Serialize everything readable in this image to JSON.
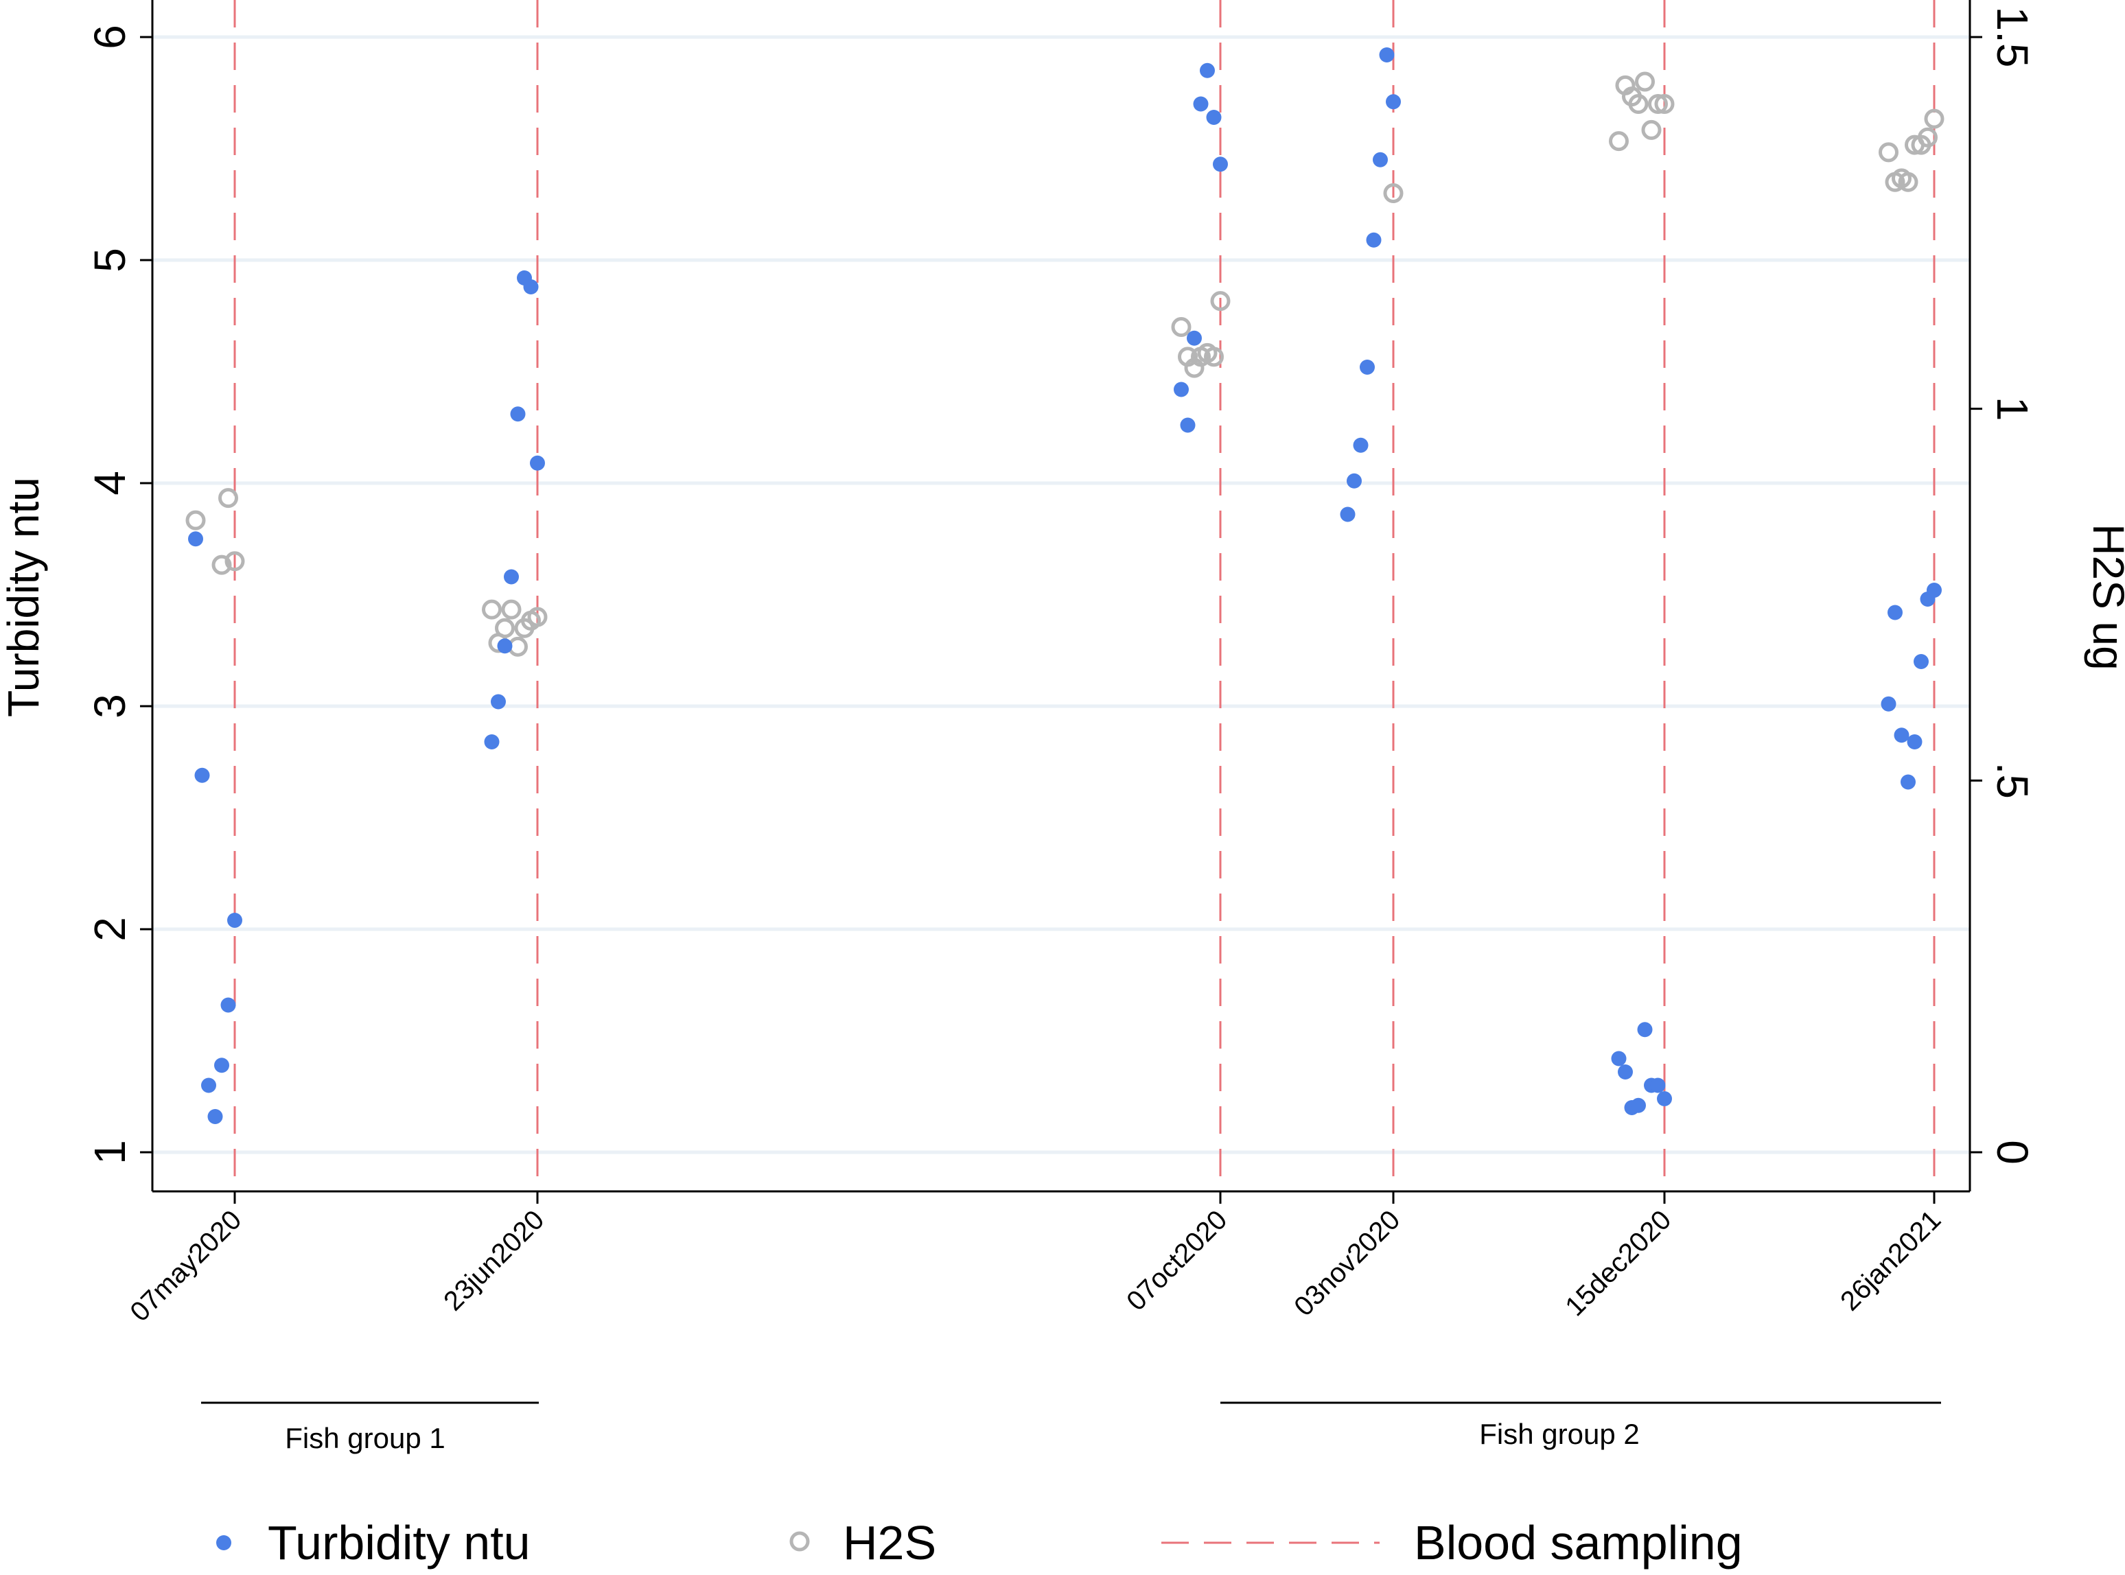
{
  "chart_data": {
    "type": "scatter",
    "title": "",
    "ylabel_left": "Turbidity ntu",
    "ylabel_right": "H2S ug",
    "ylim_left": [
      1,
      6
    ],
    "ylim_right": [
      0,
      1.5
    ],
    "yticks_left": [
      "1",
      "2",
      "3",
      "4",
      "5",
      "6"
    ],
    "yticks_right": [
      "0",
      ".5",
      "1",
      "1.5"
    ],
    "x_dates": [
      "07may2020",
      "23jun2020",
      "07oct2020",
      "03nov2020",
      "15dec2020",
      "26jan2021"
    ],
    "groups": [
      {
        "label": "Fish group 1",
        "from": "07may2020",
        "to": "23jun2020"
      },
      {
        "label": "Fish group 2",
        "from": "07oct2020",
        "to": "26jan2021"
      }
    ],
    "series": [
      {
        "name": "Turbidity ntu",
        "axis": "left",
        "marker": "filled-circle",
        "color": "#4a7fe6",
        "points": [
          {
            "date": "07may2020",
            "offset": -6,
            "value": 3.75
          },
          {
            "date": "07may2020",
            "offset": -5,
            "value": 2.69
          },
          {
            "date": "07may2020",
            "offset": -4,
            "value": 1.3
          },
          {
            "date": "07may2020",
            "offset": -3,
            "value": 1.16
          },
          {
            "date": "07may2020",
            "offset": -2,
            "value": 1.39
          },
          {
            "date": "07may2020",
            "offset": -1,
            "value": 1.66
          },
          {
            "date": "07may2020",
            "offset": 0,
            "value": 2.04
          },
          {
            "date": "23jun2020",
            "offset": -7,
            "value": 2.84
          },
          {
            "date": "23jun2020",
            "offset": -6,
            "value": 3.02
          },
          {
            "date": "23jun2020",
            "offset": -5,
            "value": 3.27
          },
          {
            "date": "23jun2020",
            "offset": -4,
            "value": 3.58
          },
          {
            "date": "23jun2020",
            "offset": -3,
            "value": 4.31
          },
          {
            "date": "23jun2020",
            "offset": -2,
            "value": 4.92
          },
          {
            "date": "23jun2020",
            "offset": -1,
            "value": 4.88
          },
          {
            "date": "23jun2020",
            "offset": 0,
            "value": 4.09
          },
          {
            "date": "07oct2020",
            "offset": -6,
            "value": 4.42
          },
          {
            "date": "07oct2020",
            "offset": -5,
            "value": 4.26
          },
          {
            "date": "07oct2020",
            "offset": -4,
            "value": 4.65
          },
          {
            "date": "07oct2020",
            "offset": -3,
            "value": 5.7
          },
          {
            "date": "07oct2020",
            "offset": -2,
            "value": 5.85
          },
          {
            "date": "07oct2020",
            "offset": -1,
            "value": 5.64
          },
          {
            "date": "07oct2020",
            "offset": 0,
            "value": 5.43
          },
          {
            "date": "03nov2020",
            "offset": -7,
            "value": 3.86
          },
          {
            "date": "03nov2020",
            "offset": -6,
            "value": 4.01
          },
          {
            "date": "03nov2020",
            "offset": -5,
            "value": 4.17
          },
          {
            "date": "03nov2020",
            "offset": -4,
            "value": 4.52
          },
          {
            "date": "03nov2020",
            "offset": -3,
            "value": 5.09
          },
          {
            "date": "03nov2020",
            "offset": -2,
            "value": 5.45
          },
          {
            "date": "03nov2020",
            "offset": -1,
            "value": 5.92
          },
          {
            "date": "03nov2020",
            "offset": 0,
            "value": 5.71
          },
          {
            "date": "15dec2020",
            "offset": -7,
            "value": 1.42
          },
          {
            "date": "15dec2020",
            "offset": -6,
            "value": 1.36
          },
          {
            "date": "15dec2020",
            "offset": -5,
            "value": 1.2
          },
          {
            "date": "15dec2020",
            "offset": -4,
            "value": 1.21
          },
          {
            "date": "15dec2020",
            "offset": -3,
            "value": 1.55
          },
          {
            "date": "15dec2020",
            "offset": -2,
            "value": 1.3
          },
          {
            "date": "15dec2020",
            "offset": -1,
            "value": 1.3
          },
          {
            "date": "15dec2020",
            "offset": 0,
            "value": 1.24
          },
          {
            "date": "26jan2021",
            "offset": -7,
            "value": 3.01
          },
          {
            "date": "26jan2021",
            "offset": -6,
            "value": 3.42
          },
          {
            "date": "26jan2021",
            "offset": -5,
            "value": 2.87
          },
          {
            "date": "26jan2021",
            "offset": -4,
            "value": 2.66
          },
          {
            "date": "26jan2021",
            "offset": -3,
            "value": 2.84
          },
          {
            "date": "26jan2021",
            "offset": -2,
            "value": 3.2
          },
          {
            "date": "26jan2021",
            "offset": -1,
            "value": 3.48
          },
          {
            "date": "26jan2021",
            "offset": 0,
            "value": 3.52
          }
        ]
      },
      {
        "name": "H2S",
        "axis": "right",
        "marker": "hollow-circle",
        "color": "#b5b5b5",
        "points": [
          {
            "date": "07may2020",
            "offset": -6,
            "value": 0.85
          },
          {
            "date": "07may2020",
            "offset": -2,
            "value": 0.79
          },
          {
            "date": "07may2020",
            "offset": -1,
            "value": 0.88
          },
          {
            "date": "07may2020",
            "offset": 0,
            "value": 0.795
          },
          {
            "date": "23jun2020",
            "offset": -7,
            "value": 0.73
          },
          {
            "date": "23jun2020",
            "offset": -6,
            "value": 0.685
          },
          {
            "date": "23jun2020",
            "offset": -5,
            "value": 0.705
          },
          {
            "date": "23jun2020",
            "offset": -4,
            "value": 0.73
          },
          {
            "date": "23jun2020",
            "offset": -3,
            "value": 0.68
          },
          {
            "date": "23jun2020",
            "offset": -2,
            "value": 0.705
          },
          {
            "date": "23jun2020",
            "offset": -1,
            "value": 0.715
          },
          {
            "date": "23jun2020",
            "offset": 0,
            "value": 0.72
          },
          {
            "date": "07oct2020",
            "offset": -6,
            "value": 1.11
          },
          {
            "date": "07oct2020",
            "offset": -5,
            "value": 1.07
          },
          {
            "date": "07oct2020",
            "offset": -4,
            "value": 1.055
          },
          {
            "date": "07oct2020",
            "offset": -3,
            "value": 1.07
          },
          {
            "date": "07oct2020",
            "offset": -2,
            "value": 1.075
          },
          {
            "date": "07oct2020",
            "offset": -1,
            "value": 1.07
          },
          {
            "date": "07oct2020",
            "offset": 0,
            "value": 1.145
          },
          {
            "date": "03nov2020",
            "offset": 0,
            "value": 1.29
          },
          {
            "date": "15dec2020",
            "offset": -7,
            "value": 1.36
          },
          {
            "date": "15dec2020",
            "offset": -6,
            "value": 1.435
          },
          {
            "date": "15dec2020",
            "offset": -5,
            "value": 1.42
          },
          {
            "date": "15dec2020",
            "offset": -4,
            "value": 1.41
          },
          {
            "date": "15dec2020",
            "offset": -3,
            "value": 1.44
          },
          {
            "date": "15dec2020",
            "offset": -2,
            "value": 1.375
          },
          {
            "date": "15dec2020",
            "offset": -1,
            "value": 1.41
          },
          {
            "date": "15dec2020",
            "offset": 0,
            "value": 1.41
          },
          {
            "date": "26jan2021",
            "offset": -7,
            "value": 1.345
          },
          {
            "date": "26jan2021",
            "offset": -6,
            "value": 1.305
          },
          {
            "date": "26jan2021",
            "offset": -5,
            "value": 1.31
          },
          {
            "date": "26jan2021",
            "offset": -4,
            "value": 1.305
          },
          {
            "date": "26jan2021",
            "offset": -3,
            "value": 1.355
          },
          {
            "date": "26jan2021",
            "offset": -2,
            "value": 1.355
          },
          {
            "date": "26jan2021",
            "offset": -1,
            "value": 1.365
          },
          {
            "date": "26jan2021",
            "offset": 0,
            "value": 1.39
          }
        ]
      }
    ],
    "reference_lines": {
      "name": "Blood sampling",
      "style": "dashed",
      "color": "#e8737a",
      "at": [
        "07may2020",
        "23jun2020",
        "07oct2020",
        "03nov2020",
        "15dec2020",
        "26jan2021"
      ]
    },
    "legend": {
      "placement": "bottom",
      "items": [
        "Turbidity ntu",
        "H2S",
        "Blood sampling"
      ]
    },
    "grid": true
  }
}
